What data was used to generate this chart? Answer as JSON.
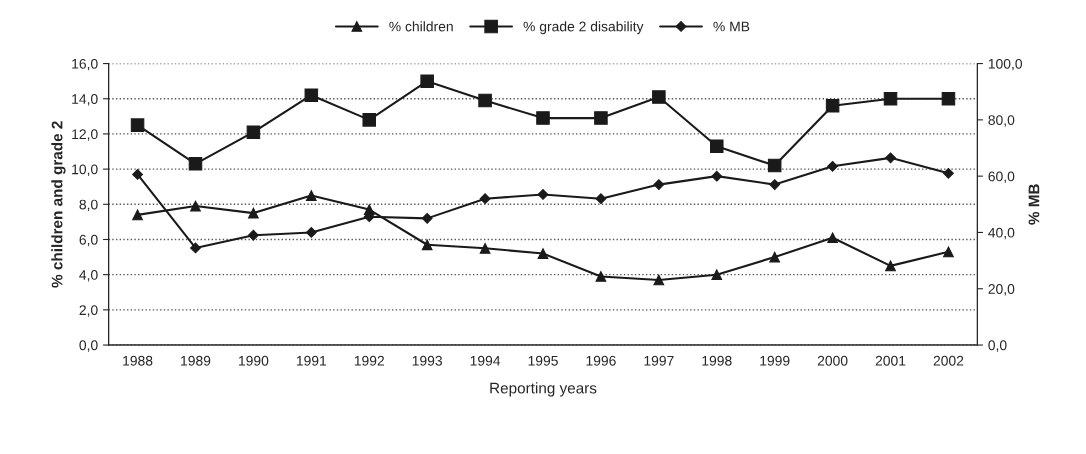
{
  "chart_data": {
    "type": "line",
    "xlabel": "Reporting years",
    "ylabel": "% children and grade 2",
    "y2label": "% MB",
    "categories": [
      "1988",
      "1989",
      "1990",
      "1991",
      "1992",
      "1993",
      "1994",
      "1995",
      "1996",
      "1997",
      "1998",
      "1999",
      "2000",
      "2001",
      "2002"
    ],
    "series": [
      {
        "name": "% children",
        "color": "#1a1a1a",
        "marker": "triangle",
        "values": [
          7.4,
          7.9,
          7.5,
          8.5,
          7.7,
          5.7,
          5.5,
          5.2,
          3.9,
          3.7,
          4.0,
          5.0,
          6.1,
          4.5,
          5.3
        ]
      },
      {
        "name": "% grade 2 disability",
        "color": "#1a1a1a",
        "marker": "square",
        "values": [
          12.5,
          10.3,
          12.1,
          14.2,
          12.8,
          15.0,
          13.9,
          12.9,
          12.9,
          14.1,
          11.3,
          10.2,
          13.6,
          14.0,
          14.0
        ]
      },
      {
        "name": "% MB",
        "color": "#1a1a1a",
        "marker": "diamond",
        "axis": "y2",
        "values": [
          60.6,
          34.5,
          39.0,
          40.0,
          45.6,
          45.0,
          52.0,
          53.5,
          52.0,
          57.0,
          60.0,
          57.0,
          63.5,
          66.5,
          61.0
        ]
      }
    ],
    "ylim": [
      0,
      16
    ],
    "yticks": [
      {
        "value": 0,
        "label": "0,0"
      },
      {
        "value": 2,
        "label": "2,0"
      },
      {
        "value": 4,
        "label": "4,0"
      },
      {
        "value": 6,
        "label": "6,0"
      },
      {
        "value": 8,
        "label": "8,0"
      },
      {
        "value": 10,
        "label": "10,0"
      },
      {
        "value": 12,
        "label": "12,0"
      },
      {
        "value": 14,
        "label": "14,0"
      },
      {
        "value": 16,
        "label": "16,0"
      }
    ],
    "y2lim": [
      0,
      100
    ],
    "y2ticks": [
      {
        "value": 0,
        "label": "0,0"
      },
      {
        "value": 20,
        "label": "20,0"
      },
      {
        "value": 40,
        "label": "40,0"
      },
      {
        "value": 60,
        "label": "60,0"
      },
      {
        "value": 80,
        "label": "80,0"
      },
      {
        "value": 100,
        "label": "100,0"
      }
    ],
    "grid": "y",
    "legend": "top",
    "line_style": "solid"
  }
}
